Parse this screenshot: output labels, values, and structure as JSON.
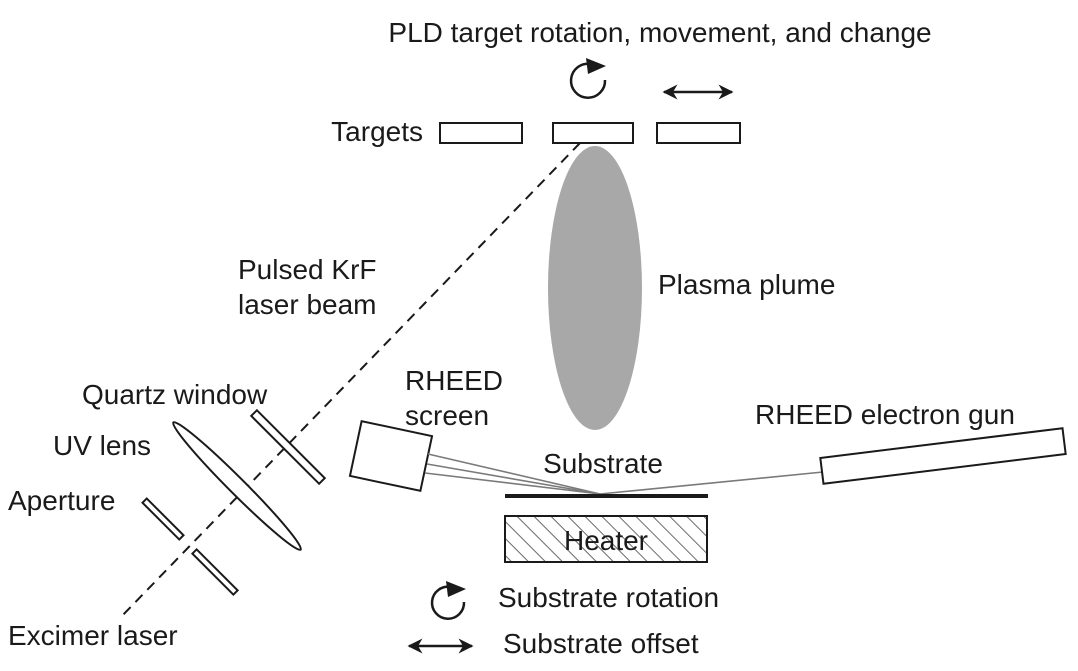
{
  "title": "PLD target rotation, movement, and change",
  "labels": {
    "targets": "Targets",
    "laser_beam_line1": "Pulsed KrF",
    "laser_beam_line2": "laser beam",
    "plasma_plume": "Plasma plume",
    "quartz_window": "Quartz window",
    "uv_lens": "UV lens",
    "aperture": "Aperture",
    "excimer_laser": "Excimer laser",
    "rheed_screen_line1": "RHEED",
    "rheed_screen_line2": "screen",
    "substrate": "Substrate",
    "rheed_gun": "RHEED electron gun",
    "heater": "Heater",
    "substrate_rotation": "Substrate rotation",
    "substrate_offset": "Substrate offset"
  },
  "colors": {
    "ink": "#1a1a1a",
    "plume": "#a8a8a8",
    "electron_beam": "#7a7a7a",
    "background": "#ffffff"
  },
  "icons": {
    "target_rotation": "rotation-arrow-icon",
    "target_movement": "double-arrow-icon",
    "substrate_rotation": "rotation-arrow-icon",
    "substrate_offset": "double-arrow-icon"
  }
}
